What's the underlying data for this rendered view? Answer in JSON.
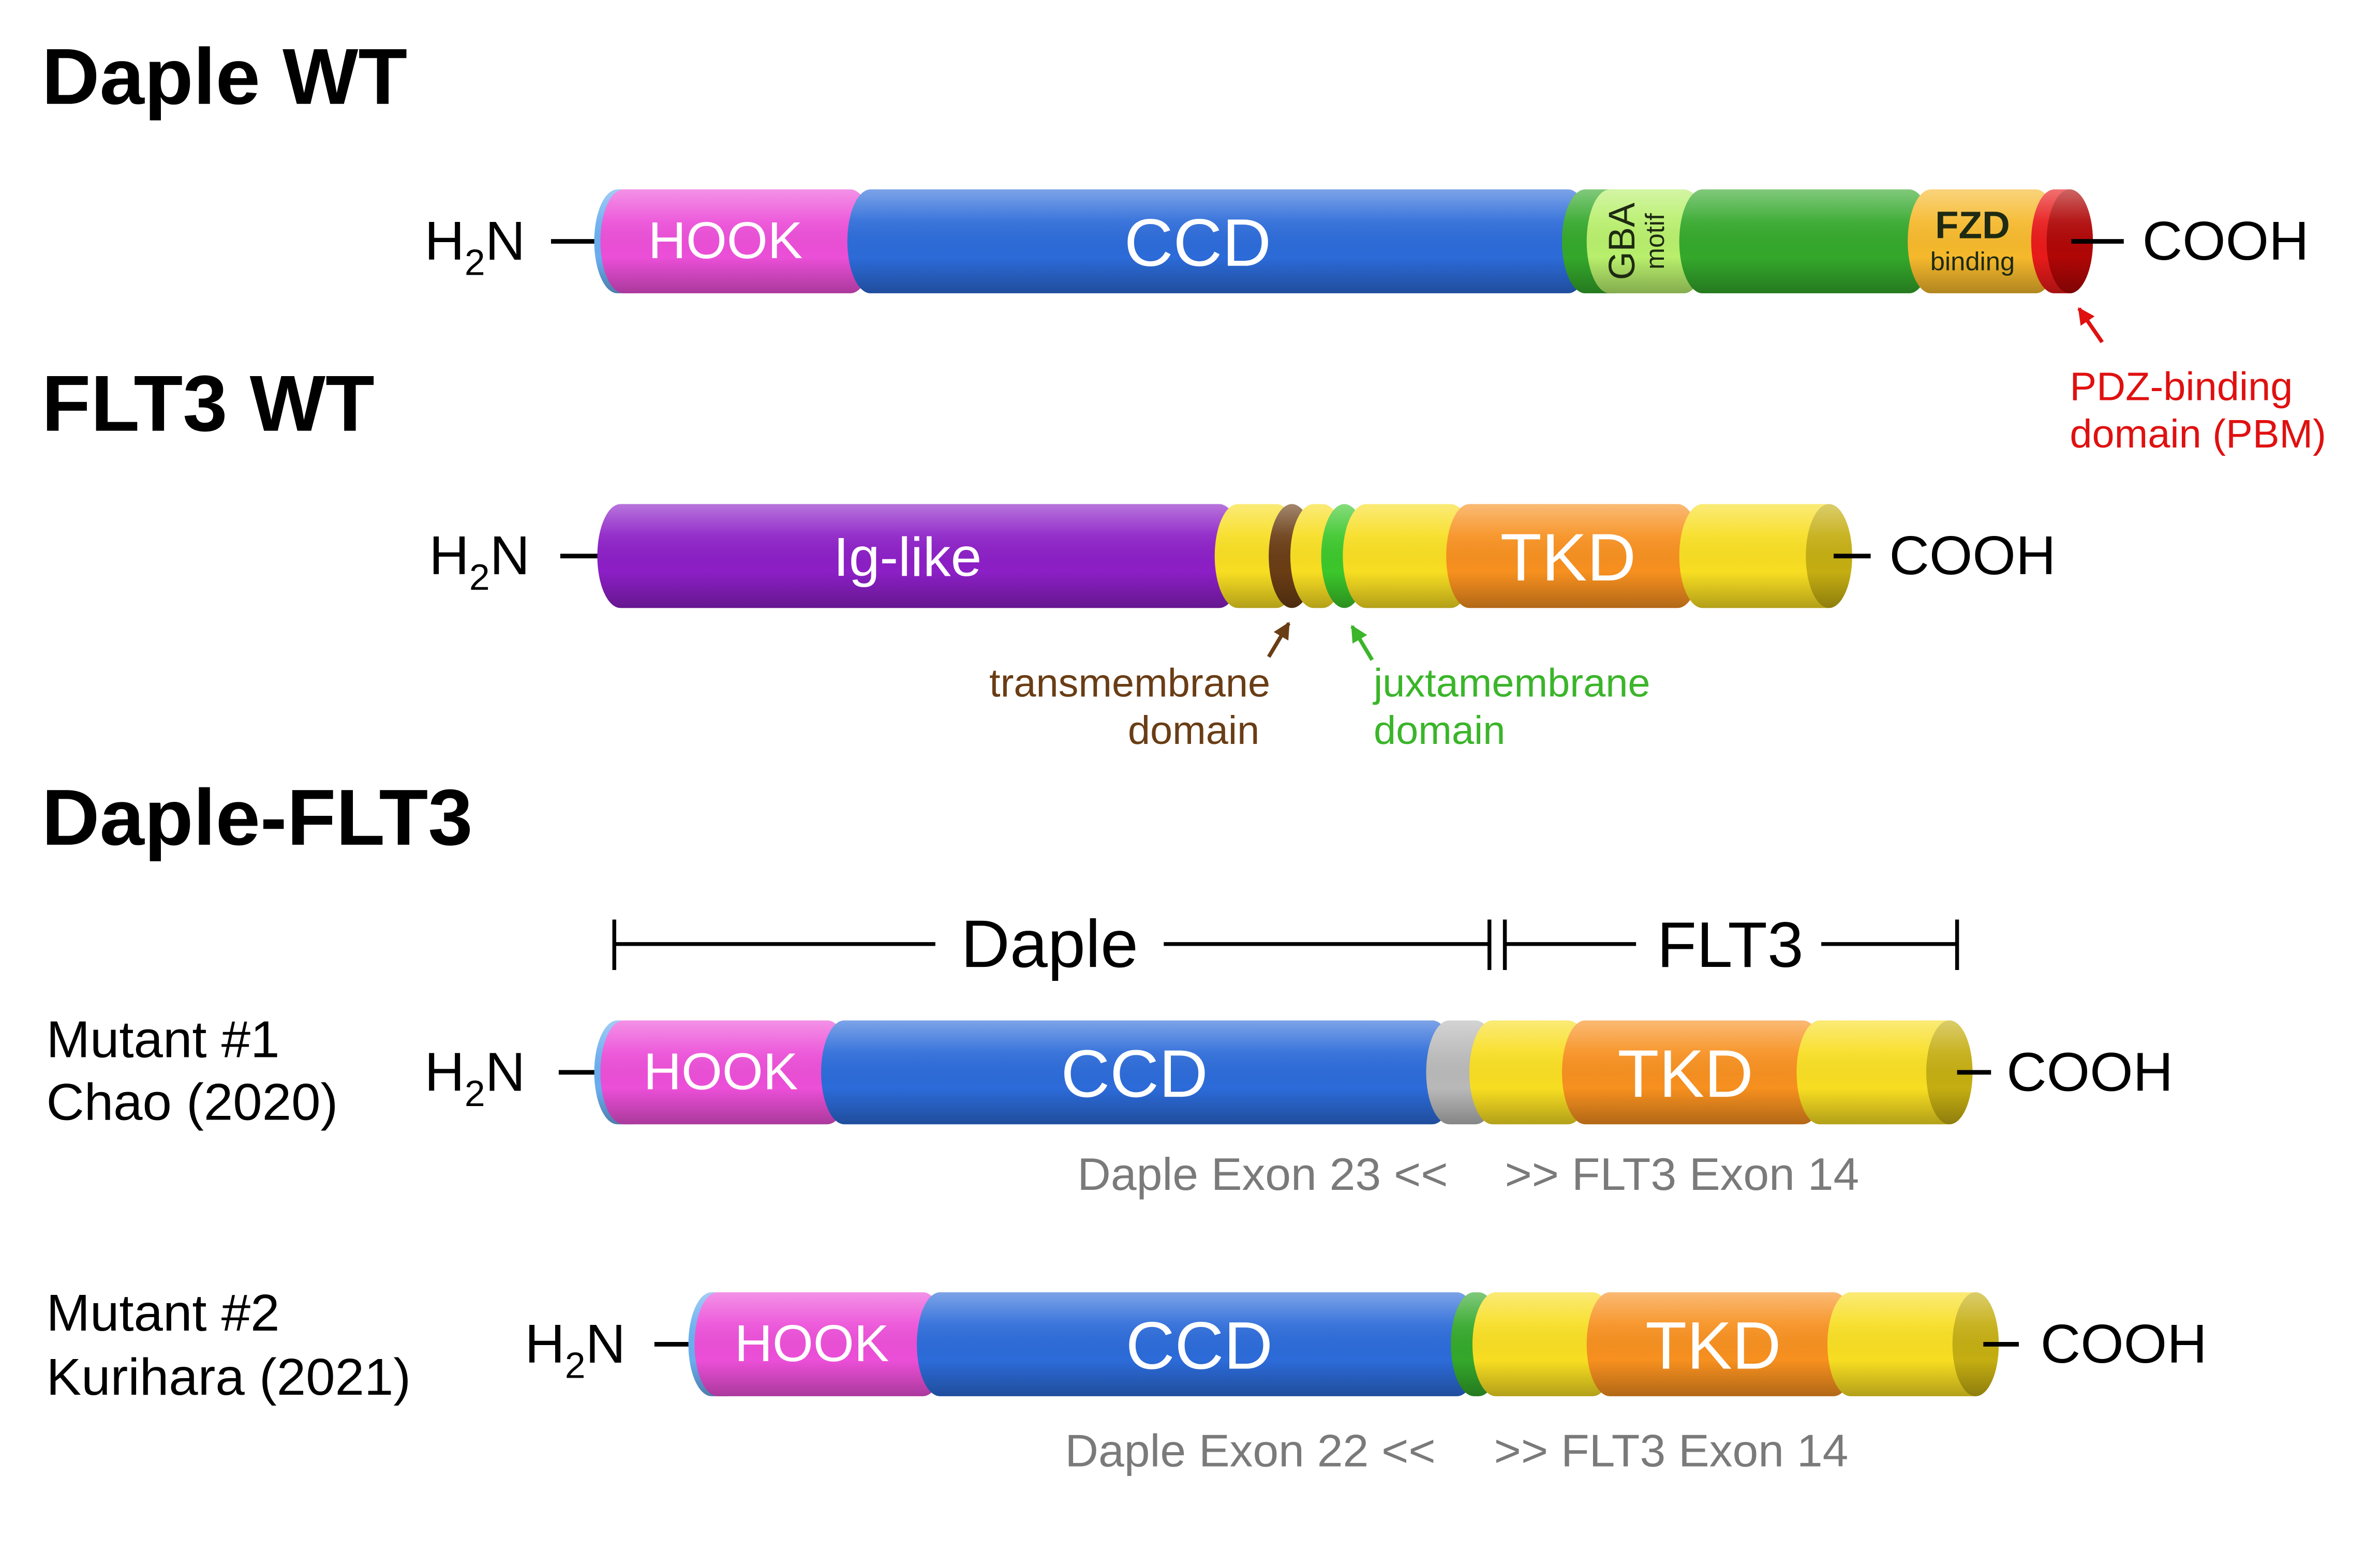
{
  "titles": {
    "daple_wt": "Daple WT",
    "flt3_wt": "FLT3 WT",
    "fusion": "Daple-FLT3"
  },
  "termini": {
    "n": {
      "h": "H",
      "sub": "2",
      "tail": "N"
    },
    "c": "COOH"
  },
  "daple_wt": {
    "hook": "HOOK",
    "ccd": "CCD",
    "gba": "GBA",
    "gba_sub": "motif",
    "fzd": "FZD",
    "fzd_sub": "binding",
    "pbm_annotation": [
      "PDZ-binding",
      "domain (PBM)"
    ]
  },
  "flt3_wt": {
    "ig": "Ig-like",
    "tkd": "TKD",
    "tm_annotation": [
      "transmembrane",
      "domain"
    ],
    "jm_annotation": [
      "juxtamembrane",
      "domain"
    ]
  },
  "fusion": {
    "bracket": {
      "daple": "Daple",
      "flt3": "FLT3"
    },
    "mutants": [
      {
        "name": "Mutant #1",
        "reference": "Chao (2020)",
        "hook": "HOOK",
        "ccd": "CCD",
        "tkd": "TKD",
        "daple_breakpoint": "Daple Exon 23 <<",
        "flt3_breakpoint": ">> FLT3 Exon 14"
      },
      {
        "name": "Mutant #2",
        "reference": "Kurihara (2021)",
        "hook": "HOOK",
        "ccd": "CCD",
        "tkd": "TKD",
        "daple_breakpoint": "Daple Exon 22 <<",
        "flt3_breakpoint": ">> FLT3 Exon 14"
      }
    ]
  },
  "colors": {
    "n_cap": "#6aaef0",
    "hook": "#ec4fd8",
    "ccd": "#2c6bd9",
    "gba": "#b8ef6c",
    "green": "#34a82b",
    "fzd": "#f6b92c",
    "pbm": "#e81a1a",
    "pbm_end": "#b00606",
    "ig": "#8c1fc6",
    "tm": "#6a3d15",
    "jm": "#3cc72b",
    "yellow": "#f8de22",
    "yellow_end": "#c5ae12",
    "tkd": "#f7901f",
    "gray": "#b9b9b9",
    "pbm_text": "#e01010",
    "tm_text": "#6a3d15",
    "jm_text": "#3bb52a",
    "caption_text": "#7a7a7a"
  }
}
